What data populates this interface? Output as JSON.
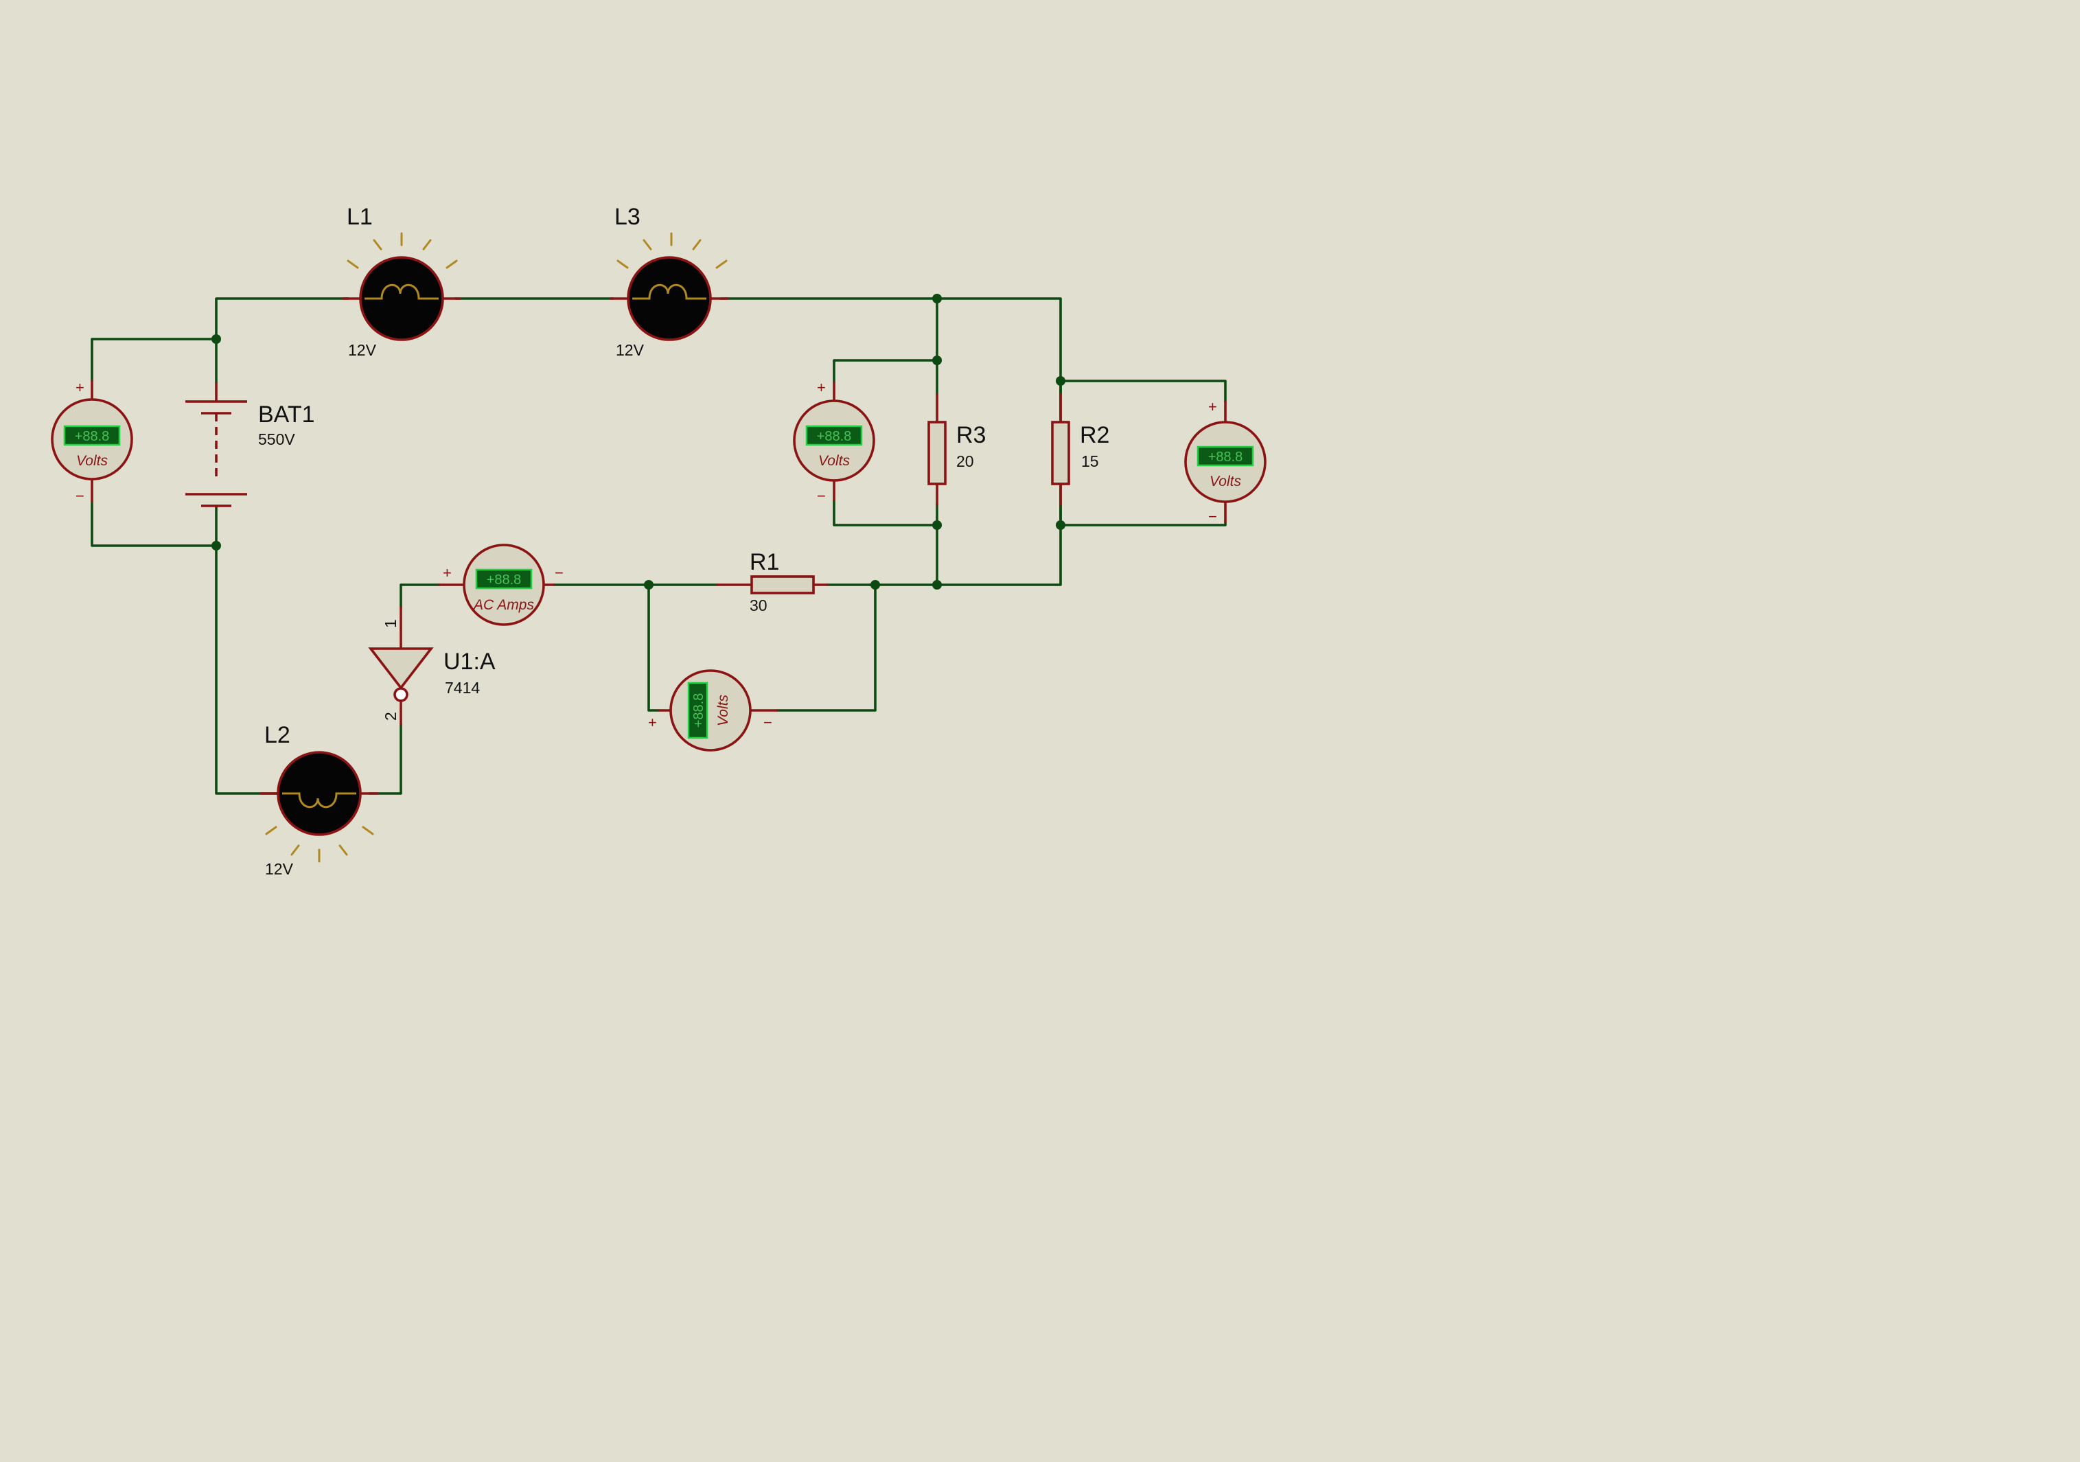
{
  "components": {
    "bat1": {
      "ref": "BAT1",
      "value": "550V"
    },
    "l1": {
      "ref": "L1",
      "value": "12V"
    },
    "l2": {
      "ref": "L2",
      "value": "12V"
    },
    "l3": {
      "ref": "L3",
      "value": "12V"
    },
    "r1": {
      "ref": "R1",
      "value": "30"
    },
    "r2": {
      "ref": "R2",
      "value": "15"
    },
    "r3": {
      "ref": "R3",
      "value": "20"
    },
    "u1": {
      "ref": "U1:A",
      "value": "7414",
      "pin_in": "1",
      "pin_out": "2"
    }
  },
  "meters": {
    "vm_bat": {
      "display": "+88.8",
      "label": "Volts",
      "plus": "+",
      "minus": "−"
    },
    "vm_r3": {
      "display": "+88.8",
      "label": "Volts",
      "plus": "+",
      "minus": "−"
    },
    "vm_r2": {
      "display": "+88.8",
      "label": "Volts",
      "plus": "+",
      "minus": "−"
    },
    "vm_r1": {
      "display": "+88.8",
      "label": "Volts",
      "plus": "+",
      "minus": "−"
    },
    "am": {
      "display": "+88.8",
      "label": "AC Amps",
      "plus": "+",
      "minus": "−"
    }
  },
  "colors": {
    "background": "#e0dfd0",
    "wire": "#0d4a12",
    "component_outline": "#8a1414",
    "component_fill": "#d7d4c1",
    "lamp_glow": "#b08a20",
    "meter_display": "#0b5a16"
  }
}
